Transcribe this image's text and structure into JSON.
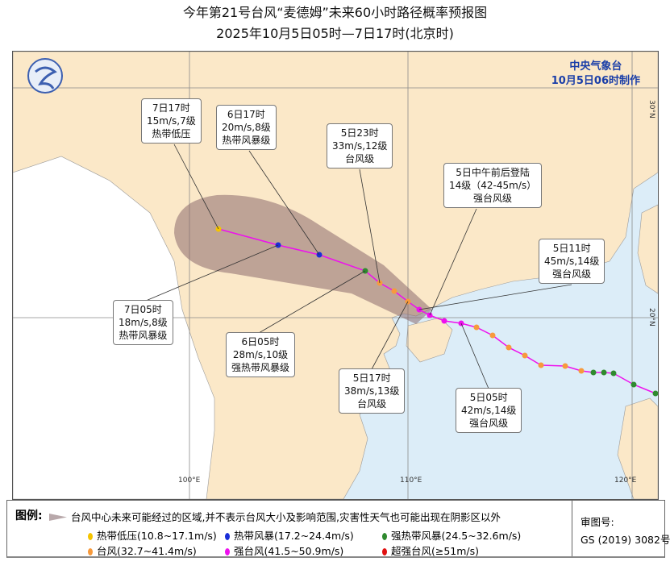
{
  "title": "今年第21号台风“麦德姆”未来60小时路径概率预报图",
  "subtitle": "2025年10月5日05时—7日17时(北京时)",
  "agency": {
    "name": "中央气象台",
    "issued": "10月5日06时制作"
  },
  "axes": {
    "lon_labels": [
      "100°E",
      "110°E",
      "120°E"
    ],
    "lat_labels": [
      "30°N",
      "20°N"
    ]
  },
  "callouts": [
    {
      "time": "7日17时",
      "wind": "15m/s,7级",
      "level": "热带低压"
    },
    {
      "time": "6日17时",
      "wind": "20m/s,8级",
      "level": "热带风暴级"
    },
    {
      "time": "5日23时",
      "wind": "33m/s,12级",
      "level": "台风级"
    },
    {
      "time": "5日中午前后登陆",
      "wind": "14级（42-45m/s）",
      "level": "强台风级"
    },
    {
      "time": "5日11时",
      "wind": "45m/s,14级",
      "level": "强台风级"
    },
    {
      "time": "7日05时",
      "wind": "18m/s,8级",
      "level": "热带风暴级"
    },
    {
      "time": "6日05时",
      "wind": "28m/s,10级",
      "level": "强热带风暴级"
    },
    {
      "time": "5日17时",
      "wind": "38m/s,13级",
      "level": "台风级"
    },
    {
      "time": "5日05时",
      "wind": "42m/s,14级",
      "level": "强台风级"
    }
  ],
  "legend": {
    "title": "图例:",
    "shade_text": "台风中心未来可能经过的区域,并不表示台风大小及影响范围,灾害性天气也可能出现在阴影区以外",
    "items": [
      {
        "label": "热带低压(10.8~17.1m/s)",
        "color": "#f5c400"
      },
      {
        "label": "热带风暴(17.2~24.4m/s)",
        "color": "#1a2ed8"
      },
      {
        "label": "强热带风暴(24.5~32.6m/s)",
        "color": "#2f8a2f"
      },
      {
        "label": "台风(32.7~41.4m/s)",
        "color": "#f79a3c"
      },
      {
        "label": "强台风(41.5~50.9m/s)",
        "color": "#ee10ee"
      },
      {
        "label": "超强台风(≥51m/s)",
        "color": "#e01010"
      }
    ],
    "review_label": "审图号:",
    "review_number": "GS (2019) 3082号"
  },
  "colors": {
    "land": "#fbe8c8",
    "sea": "#dcedf8",
    "cone": "#8c6a6e",
    "track": "#ee10ee"
  }
}
